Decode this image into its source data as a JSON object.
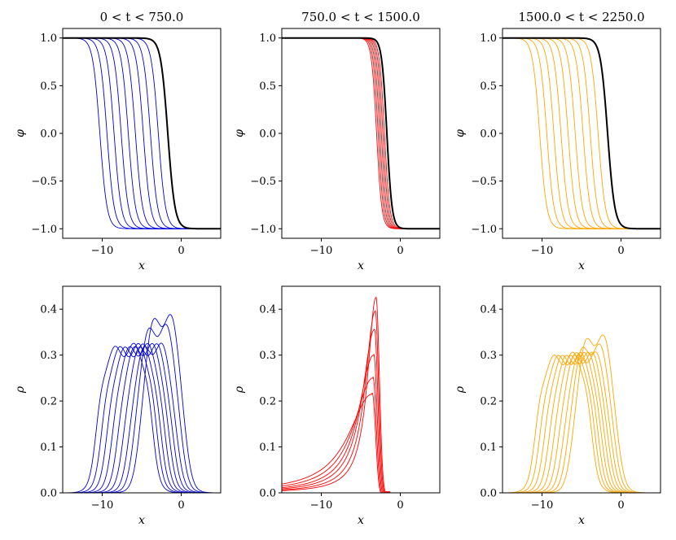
{
  "colors": {
    "panel1": "#0000dd",
    "panel2": "#ff0000",
    "panel3": "#ffa500",
    "final": "#000000"
  },
  "chart_data": [
    {
      "type": "line",
      "title": "0 < t < 750.0",
      "xlabel": "x",
      "ylabel": "φ",
      "xlim": [
        -15,
        5
      ],
      "ylim": [
        -1.1,
        1.1
      ],
      "xticks": [
        -10,
        0
      ],
      "xtick_labels": [
        "−10",
        "0"
      ],
      "yticks": [
        -1.0,
        -0.5,
        0.0,
        0.5,
        1.0
      ],
      "ytick_labels": [
        "−1.0",
        "−0.5",
        "0.0",
        "0.5",
        "1.0"
      ],
      "profile": "tanh",
      "color": "#0000dd",
      "centers": [
        -10.3,
        -9.4,
        -8.5,
        -7.6,
        -6.7,
        -5.8,
        -4.8,
        -3.9,
        -2.9
      ],
      "width": 0.9,
      "final_center": -1.7
    },
    {
      "type": "line",
      "title": "750.0 < t < 1500.0",
      "xlabel": "x",
      "ylabel": "φ",
      "xlim": [
        -15,
        5
      ],
      "ylim": [
        -1.1,
        1.1
      ],
      "xticks": [
        -10,
        0
      ],
      "xtick_labels": [
        "−10",
        "0"
      ],
      "yticks": [
        -1.0,
        -0.5,
        0.0,
        0.5,
        1.0
      ],
      "ytick_labels": [
        "−1.0",
        "−0.5",
        "0.0",
        "0.5",
        "1.0"
      ],
      "profile": "tanh",
      "color": "#ff0000",
      "centers": [
        -3.0,
        -2.8,
        -2.6,
        -2.4,
        -2.2,
        -2.0
      ],
      "width": 0.65,
      "final_center": -1.7
    },
    {
      "type": "line",
      "title": "1500.0 < t < 2250.0",
      "xlabel": "x",
      "ylabel": "φ",
      "xlim": [
        -15,
        5
      ],
      "ylim": [
        -1.1,
        1.1
      ],
      "xticks": [
        -10,
        0
      ],
      "xtick_labels": [
        "−10",
        "0"
      ],
      "yticks": [
        -1.0,
        -0.5,
        0.0,
        0.5,
        1.0
      ],
      "ytick_labels": [
        "−1.0",
        "−0.5",
        "0.0",
        "0.5",
        "1.0"
      ],
      "profile": "tanh",
      "color": "#ffa500",
      "centers": [
        -10.3,
        -9.4,
        -8.5,
        -7.6,
        -6.7,
        -5.8,
        -4.8,
        -3.9,
        -2.9
      ],
      "width": 0.9,
      "final_center": -1.7
    },
    {
      "type": "line",
      "title": "",
      "xlabel": "x",
      "ylabel": "ρ",
      "xlim": [
        -15,
        5
      ],
      "ylim": [
        0,
        0.45
      ],
      "xticks": [
        -10,
        0
      ],
      "xtick_labels": [
        "−10",
        "0"
      ],
      "yticks": [
        0.0,
        0.1,
        0.2,
        0.3,
        0.4
      ],
      "ytick_labels": [
        "0.0",
        "0.1",
        "0.2",
        "0.3",
        "0.4"
      ],
      "profile": "plateau",
      "color": "#0000dd",
      "centers": [
        -7.2,
        -6.6,
        -6.0,
        -5.4,
        -4.8,
        -4.2,
        -3.6,
        -3.0,
        -2.4
      ],
      "half_widths": [
        3.4,
        3.3,
        3.2,
        3.1,
        3.0,
        2.9,
        2.8,
        2.7,
        2.6
      ],
      "peak_values": [
        0.333,
        0.333,
        0.333,
        0.335,
        0.336,
        0.337,
        0.34,
        0.385,
        0.41
      ],
      "edge": 0.5
    },
    {
      "type": "line",
      "title": "",
      "xlabel": "x",
      "ylabel": "ρ",
      "xlim": [
        -15,
        5
      ],
      "ylim": [
        0,
        0.45
      ],
      "xticks": [
        -10,
        0
      ],
      "xtick_labels": [
        "−10",
        "0"
      ],
      "yticks": [
        0.0,
        0.1,
        0.2,
        0.3,
        0.4
      ],
      "ytick_labels": [
        "0.0",
        "0.1",
        "0.2",
        "0.3",
        "0.4"
      ],
      "profile": "skewed_peak",
      "color": "#ff0000",
      "peak_positions": [
        -3.6,
        -3.5,
        -3.4,
        -3.3,
        -3.2,
        -3.1
      ],
      "peak_values": [
        0.215,
        0.25,
        0.3,
        0.355,
        0.395,
        0.425
      ],
      "left_decay": [
        4.2,
        3.4,
        2.7,
        2.2,
        1.8,
        1.5
      ],
      "right_decay": 0.6
    },
    {
      "type": "line",
      "title": "",
      "xlabel": "x",
      "ylabel": "ρ",
      "xlim": [
        -15,
        5
      ],
      "ylim": [
        0,
        0.45
      ],
      "xticks": [
        -10,
        0
      ],
      "xtick_labels": [
        "−10",
        "0"
      ],
      "yticks": [
        0.0,
        0.1,
        0.2,
        0.3,
        0.4
      ],
      "ytick_labels": [
        "0.0",
        "0.1",
        "0.2",
        "0.3",
        "0.4"
      ],
      "profile": "plateau",
      "color": "#ffa500",
      "centers": [
        -7.3,
        -6.8,
        -6.3,
        -5.8,
        -5.3,
        -4.8,
        -4.3,
        -3.8,
        -3.3
      ],
      "half_widths": [
        3.4,
        3.3,
        3.2,
        3.1,
        3.0,
        2.9,
        2.8,
        2.7,
        2.6
      ],
      "peak_values": [
        0.313,
        0.313,
        0.314,
        0.315,
        0.316,
        0.318,
        0.32,
        0.34,
        0.363
      ],
      "edge": 0.5
    }
  ]
}
